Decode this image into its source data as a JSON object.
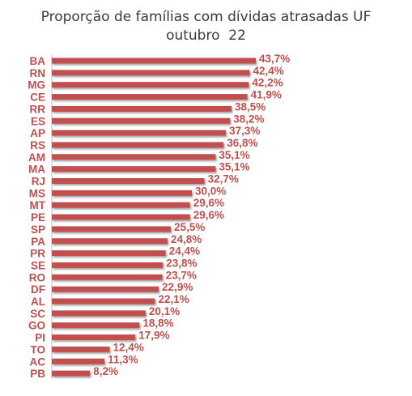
{
  "chart_data": {
    "type": "bar",
    "orientation": "horizontal",
    "title_line1": "Proporção de famílias com dívidas atrasadas UF",
    "title_line2": "outubro  22",
    "categories": [
      "BA",
      "RN",
      "MG",
      "CE",
      "RR",
      "ES",
      "AP",
      "RS",
      "AM",
      "MA",
      "RJ",
      "MS",
      "MT",
      "PE",
      "SP",
      "PA",
      "PR",
      "SE",
      "RO",
      "DF",
      "AL",
      "SC",
      "GO",
      "PI",
      "TO",
      "AC",
      "PB"
    ],
    "values": [
      43.7,
      42.4,
      42.2,
      41.9,
      38.5,
      38.2,
      37.3,
      36.8,
      35.1,
      35.1,
      32.7,
      30.0,
      29.6,
      29.6,
      25.5,
      24.8,
      24.4,
      23.8,
      23.7,
      22.9,
      22.1,
      20.1,
      18.8,
      17.9,
      12.4,
      11.3,
      8.2
    ],
    "value_labels": [
      "43,7%",
      "42,4%",
      "42,2%",
      "41,9%",
      "38,5%",
      "38,2%",
      "37,3%",
      "36,8%",
      "35,1%",
      "35,1%",
      "32,7%",
      "30,0%",
      "29,6%",
      "29,6%",
      "25,5%",
      "24,8%",
      "24,4%",
      "23,8%",
      "23,7%",
      "22,9%",
      "22,1%",
      "20,1%",
      "18,8%",
      "17,9%",
      "12,4%",
      "11,3%",
      "8,2%"
    ],
    "xlim": [
      0,
      43.7
    ],
    "grid": false,
    "legend": "none",
    "bar_color": "#c0504d",
    "label_color": "#c0504d"
  }
}
